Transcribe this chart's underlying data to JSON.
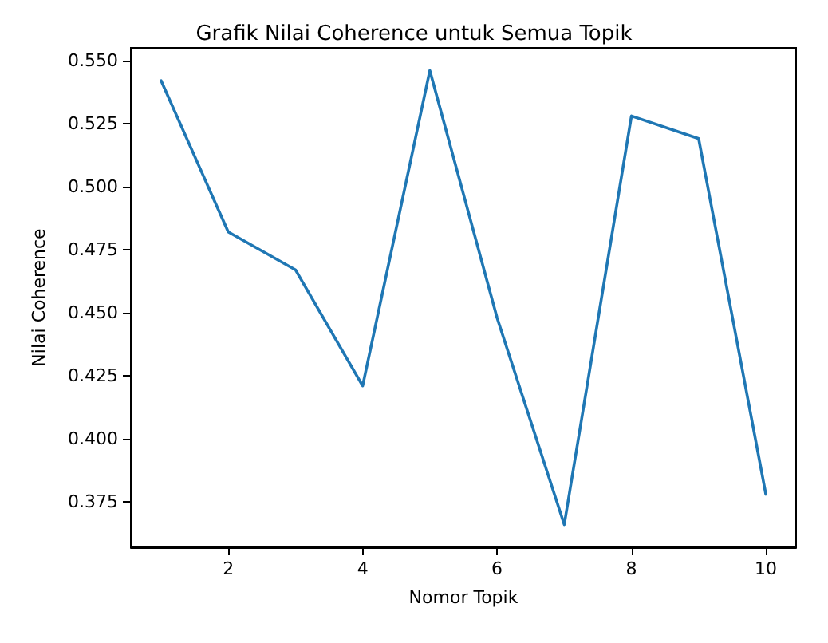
{
  "chart_data": {
    "type": "line",
    "title": "Grafik Nilai Coherence untuk Semua Topik",
    "xlabel": "Nomor Topik",
    "ylabel": "Nilai Coherence",
    "x": [
      1,
      2,
      3,
      4,
      5,
      6,
      7,
      8,
      9,
      10
    ],
    "series": [
      {
        "color": "#1f77b4",
        "values": [
          0.542,
          0.482,
          0.467,
          0.421,
          0.546,
          0.448,
          0.366,
          0.528,
          0.519,
          0.378
        ]
      }
    ],
    "xlim": [
      0.55,
      10.45
    ],
    "xticks": [
      2,
      4,
      6,
      8,
      10
    ],
    "ylim": [
      0.357,
      0.555
    ],
    "yticks": [
      0.375,
      {
        "value": 0.4,
        "label": "0.400"
      },
      0.425,
      {
        "value": 0.45,
        "label": "0.450"
      },
      0.475,
      {
        "value": 0.5,
        "label": "0.500"
      },
      0.525,
      {
        "value": 0.55,
        "label": "0.550"
      }
    ],
    "grid": false,
    "marker": "none",
    "line_style": "solid"
  }
}
